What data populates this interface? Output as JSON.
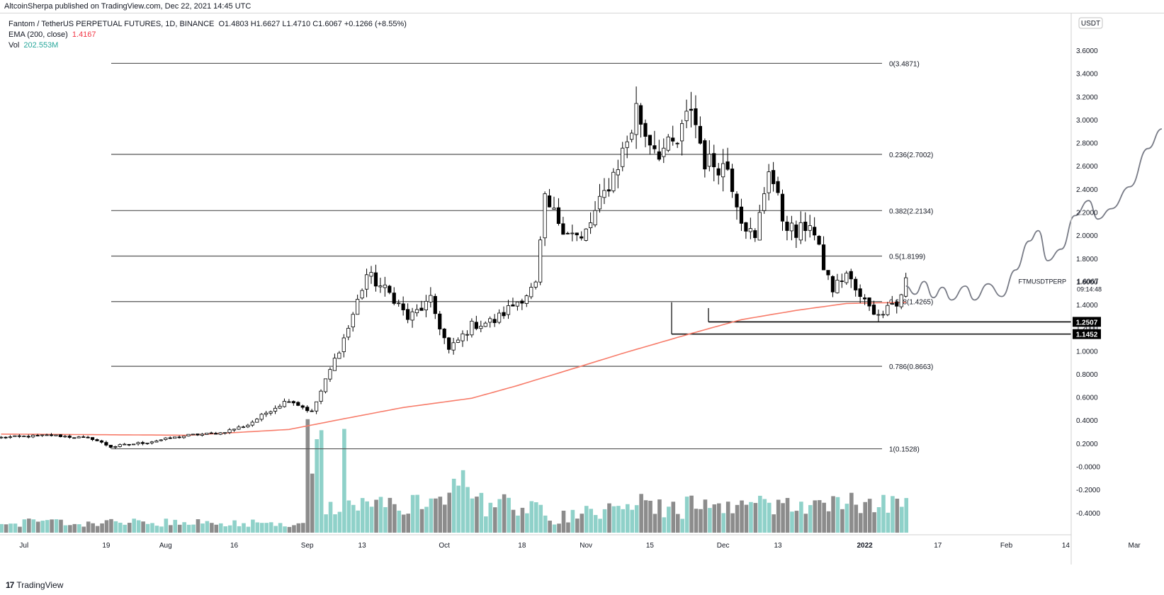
{
  "header": {
    "published": "AltcoinSherpa published on TradingView.com, Dec 22, 2021 14:45 UTC"
  },
  "legend": {
    "symbol_line": "Fantom / TetherUS PERPETUAL FUTURES, 1D, BINANCE",
    "ohlc": "O1.4803  H1.6627  L1.4710  C1.6067  +0.1266 (+8.55%)",
    "ema_label": "EMA (200, close)",
    "ema_value": "1.4167",
    "vol_label": "Vol",
    "vol_value": "202.553M"
  },
  "colors": {
    "up": "#ffffff",
    "down": "#000000",
    "ema": "#f77c6a",
    "vol_up": "#8fd1c9",
    "vol_down": "#8c8c8c",
    "fib": "#555555",
    "projection": "#787b86"
  },
  "currency_button": "USDT",
  "price_label": {
    "symbol": "FTMUSDTPERP",
    "price": "1.6067",
    "countdown": "09:14:48"
  },
  "level_labels": [
    {
      "value": "1.2507"
    },
    {
      "value": "1.1452"
    }
  ],
  "footer": {
    "brand": "TradingView"
  },
  "chart_data": {
    "type": "candlestick",
    "x_axis_labels": [
      "Jul",
      "19",
      "Aug",
      "16",
      "Sep",
      "13",
      "Oct",
      "18",
      "Nov",
      "15",
      "Dec",
      "13",
      "2022",
      "17",
      "Feb",
      "14",
      "Mar"
    ],
    "y_axis_labels": [
      "3.6000",
      "3.4000",
      "3.2000",
      "3.0000",
      "2.8000",
      "2.6000",
      "2.4000",
      "2.2000",
      "2.0000",
      "1.8000",
      "1.6000",
      "1.4000",
      "1.2000",
      "1.0000",
      "0.8000",
      "0.6000",
      "0.4000",
      "0.2000",
      "-0.0000",
      "-0.2000",
      "-0.4000"
    ],
    "ylim": [
      -0.55,
      3.8
    ],
    "fib_levels": [
      {
        "ratio": "0",
        "price": 3.4871,
        "label": "0(3.4871)"
      },
      {
        "ratio": "0.236",
        "price": 2.7002,
        "label": "0.236(2.7002)"
      },
      {
        "ratio": "0.382",
        "price": 2.2134,
        "label": "0.382(2.2134)"
      },
      {
        "ratio": "0.5",
        "price": 1.8199,
        "label": "0.5(1.8199)"
      },
      {
        "ratio": "0.618",
        "price": 1.4265,
        "label": "0.618(1.4265)"
      },
      {
        "ratio": "0.786",
        "price": 0.8663,
        "label": "0.786(0.8663)"
      },
      {
        "ratio": "1",
        "price": 0.1528,
        "label": "1(0.1528)"
      }
    ],
    "horizontal_levels": [
      1.2507,
      1.1452
    ],
    "close_anchors": [
      [
        "2021-06-26",
        0.25
      ],
      [
        "2021-07-07",
        0.27
      ],
      [
        "2021-07-16",
        0.24
      ],
      [
        "2021-07-20",
        0.17
      ],
      [
        "2021-07-28",
        0.21
      ],
      [
        "2021-08-06",
        0.27
      ],
      [
        "2021-08-13",
        0.29
      ],
      [
        "2021-08-19",
        0.36
      ],
      [
        "2021-08-24",
        0.49
      ],
      [
        "2021-08-28",
        0.58
      ],
      [
        "2021-09-02",
        0.47
      ],
      [
        "2021-09-05",
        0.74
      ],
      [
        "2021-09-10",
        1.2
      ],
      [
        "2021-09-14",
        1.66
      ],
      [
        "2021-09-20",
        1.46
      ],
      [
        "2021-09-23",
        1.28
      ],
      [
        "2021-09-28",
        1.43
      ],
      [
        "2021-10-02",
        1.0
      ],
      [
        "2021-10-07",
        1.22
      ],
      [
        "2021-10-12",
        1.26
      ],
      [
        "2021-10-17",
        1.43
      ],
      [
        "2021-10-21",
        1.56
      ],
      [
        "2021-10-23",
        2.28
      ],
      [
        "2021-10-27",
        2.08
      ],
      [
        "2021-10-31",
        1.95
      ],
      [
        "2021-11-04",
        2.27
      ],
      [
        "2021-11-08",
        2.62
      ],
      [
        "2021-11-11",
        2.92
      ],
      [
        "2021-11-12",
        3.1
      ],
      [
        "2021-11-14",
        2.88
      ],
      [
        "2021-11-17",
        2.73
      ],
      [
        "2021-11-21",
        2.79
      ],
      [
        "2021-11-24",
        3.12
      ],
      [
        "2021-11-27",
        2.64
      ],
      [
        "2021-12-02",
        2.59
      ],
      [
        "2021-12-05",
        2.16
      ],
      [
        "2021-12-08",
        1.95
      ],
      [
        "2021-12-11",
        2.6
      ],
      [
        "2021-12-14",
        2.15
      ],
      [
        "2021-12-17",
        2.0
      ],
      [
        "2021-12-20",
        2.12
      ],
      [
        "2021-12-23",
        1.73
      ],
      [
        "2021-12-25",
        1.53
      ],
      [
        "2021-12-28",
        1.67
      ],
      [
        "2021-12-31",
        1.45
      ],
      [
        "2022-01-02",
        1.41
      ],
      [
        "2022-01-04",
        1.29
      ],
      [
        "2022-01-06",
        1.43
      ],
      [
        "2022-01-08",
        1.39
      ],
      [
        "2022-01-10",
        1.61
      ]
    ],
    "ema_anchors": [
      [
        "2021-06-26",
        0.28
      ],
      [
        "2021-08-06",
        0.27
      ],
      [
        "2021-08-28",
        0.32
      ],
      [
        "2021-09-10",
        0.42
      ],
      [
        "2021-09-22",
        0.51
      ],
      [
        "2021-10-07",
        0.59
      ],
      [
        "2021-10-17",
        0.7
      ],
      [
        "2021-10-27",
        0.82
      ],
      [
        "2021-11-10",
        0.99
      ],
      [
        "2021-11-24",
        1.15
      ],
      [
        "2021-12-05",
        1.27
      ],
      [
        "2021-12-17",
        1.35
      ],
      [
        "2021-12-28",
        1.41
      ],
      [
        "2022-01-10",
        1.42
      ]
    ],
    "projection": [
      [
        "2022-01-10",
        1.56
      ],
      [
        "2022-01-12",
        1.49
      ],
      [
        "2022-01-14",
        1.6
      ],
      [
        "2022-01-16",
        1.46
      ],
      [
        "2022-01-18",
        1.55
      ],
      [
        "2022-01-20",
        1.44
      ],
      [
        "2022-01-23",
        1.56
      ],
      [
        "2022-01-25",
        1.44
      ],
      [
        "2022-01-28",
        1.58
      ],
      [
        "2022-01-31",
        1.47
      ],
      [
        "2022-02-03",
        1.7
      ],
      [
        "2022-02-06",
        1.95
      ],
      [
        "2022-02-08",
        2.04
      ],
      [
        "2022-02-10",
        1.78
      ],
      [
        "2022-02-13",
        1.88
      ],
      [
        "2022-02-16",
        2.17
      ],
      [
        "2022-02-19",
        2.3
      ],
      [
        "2022-02-21",
        2.14
      ],
      [
        "2022-02-24",
        2.23
      ],
      [
        "2022-02-28",
        2.42
      ],
      [
        "2022-03-04",
        2.75
      ],
      [
        "2022-03-07",
        2.92
      ]
    ]
  }
}
